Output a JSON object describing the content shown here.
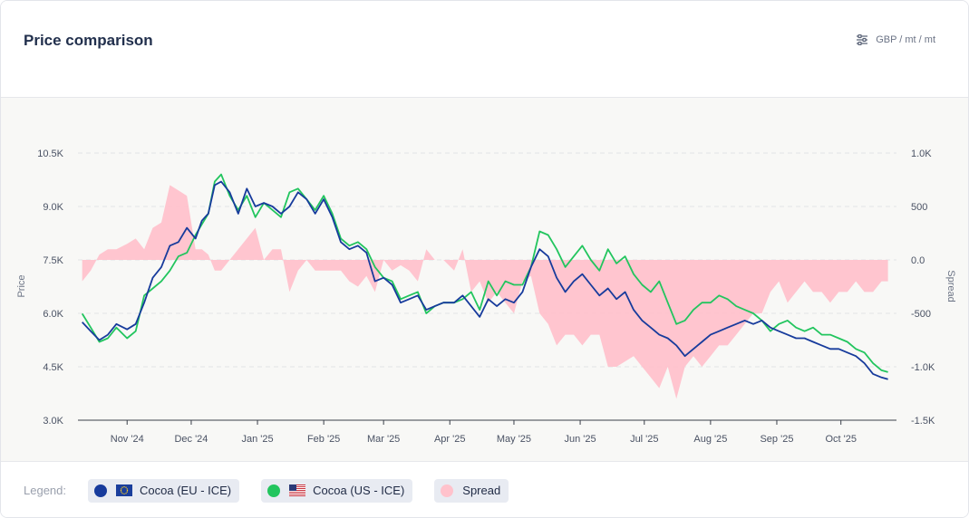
{
  "header": {
    "title": "Price comparison",
    "units": "GBP / mt / mt",
    "units_icon": "sliders-icon"
  },
  "legend": {
    "label": "Legend:",
    "items": [
      {
        "name": "Cocoa (EU - ICE)",
        "color": "#173b9c",
        "flag": "eu-flag-icon"
      },
      {
        "name": "Cocoa (US - ICE)",
        "color": "#22c55e",
        "flag": "us-flag-icon"
      },
      {
        "name": "Spread",
        "color": "#ffc2cc"
      }
    ]
  },
  "chart_data": {
    "type": "line",
    "ylabel": "Price",
    "y2label": "Spread",
    "ylim": [
      3000,
      10500
    ],
    "yticks": [
      3000,
      4500,
      6000,
      7500,
      9000,
      10500
    ],
    "ytick_labels": [
      "3.0K",
      "4.5K",
      "6.0K",
      "7.5K",
      "9.0K",
      "10.5K"
    ],
    "y2lim": [
      -1500,
      1000
    ],
    "y2ticks": [
      -1500,
      -1000,
      -500,
      0,
      500,
      1000
    ],
    "y2tick_labels": [
      "-1.5K",
      "-1.0K",
      "-500",
      "0.0",
      "500",
      "1.0K"
    ],
    "xlim": [
      "2024-10-09",
      "2025-10-27"
    ],
    "xticks": [
      "2024-11-01",
      "2024-12-01",
      "2025-01-01",
      "2025-02-01",
      "2025-03-01",
      "2025-04-01",
      "2025-05-01",
      "2025-06-01",
      "2025-07-01",
      "2025-08-01",
      "2025-09-01",
      "2025-10-01"
    ],
    "xtick_labels": [
      "Nov '24",
      "Dec '24",
      "Jan '25",
      "Feb '25",
      "Mar '25",
      "Apr '25",
      "May '25",
      "Jun '25",
      "Jul '25",
      "Aug '25",
      "Sep '25",
      "Oct '25"
    ],
    "grid": true,
    "legend_position": "bottom",
    "series": [
      {
        "name": "Cocoa (EU - ICE)",
        "axis": "left",
        "color": "#173b9c",
        "x": [
          "2024-10-11",
          "2024-10-15",
          "2024-10-19",
          "2024-10-23",
          "2024-10-27",
          "2024-11-01",
          "2024-11-05",
          "2024-11-09",
          "2024-11-13",
          "2024-11-17",
          "2024-11-21",
          "2024-11-25",
          "2024-11-29",
          "2024-12-03",
          "2024-12-06",
          "2024-12-09",
          "2024-12-12",
          "2024-12-15",
          "2024-12-19",
          "2024-12-23",
          "2024-12-27",
          "2024-12-31",
          "2025-01-04",
          "2025-01-08",
          "2025-01-12",
          "2025-01-16",
          "2025-01-20",
          "2025-01-24",
          "2025-01-28",
          "2025-02-01",
          "2025-02-05",
          "2025-02-09",
          "2025-02-13",
          "2025-02-17",
          "2025-02-21",
          "2025-02-25",
          "2025-03-01",
          "2025-03-05",
          "2025-03-09",
          "2025-03-13",
          "2025-03-17",
          "2025-03-21",
          "2025-03-25",
          "2025-03-29",
          "2025-04-03",
          "2025-04-07",
          "2025-04-11",
          "2025-04-15",
          "2025-04-19",
          "2025-04-23",
          "2025-04-27",
          "2025-05-01",
          "2025-05-05",
          "2025-05-09",
          "2025-05-13",
          "2025-05-17",
          "2025-05-21",
          "2025-05-25",
          "2025-05-29",
          "2025-06-02",
          "2025-06-06",
          "2025-06-10",
          "2025-06-14",
          "2025-06-18",
          "2025-06-22",
          "2025-06-26",
          "2025-06-30",
          "2025-07-04",
          "2025-07-08",
          "2025-07-12",
          "2025-07-16",
          "2025-07-20",
          "2025-07-24",
          "2025-07-28",
          "2025-08-01",
          "2025-08-05",
          "2025-08-09",
          "2025-08-13",
          "2025-08-17",
          "2025-08-21",
          "2025-08-25",
          "2025-08-29",
          "2025-09-02",
          "2025-09-06",
          "2025-09-10",
          "2025-09-14",
          "2025-09-18",
          "2025-09-22",
          "2025-09-26",
          "2025-09-30",
          "2025-10-04",
          "2025-10-08",
          "2025-10-12",
          "2025-10-16",
          "2025-10-20",
          "2025-10-23"
        ],
        "values": [
          5750,
          5500,
          5250,
          5400,
          5700,
          5550,
          5700,
          6300,
          7000,
          7300,
          7900,
          8000,
          8400,
          8100,
          8600,
          8800,
          9600,
          9700,
          9400,
          8800,
          9500,
          9000,
          9100,
          9000,
          8800,
          9000,
          9400,
          9200,
          8800,
          9200,
          8700,
          8000,
          7800,
          7900,
          7700,
          6900,
          7000,
          6800,
          6300,
          6400,
          6500,
          6100,
          6200,
          6300,
          6300,
          6500,
          6200,
          5900,
          6400,
          6200,
          6400,
          6300,
          6600,
          7300,
          7800,
          7600,
          7000,
          6600,
          6900,
          7100,
          6800,
          6500,
          6700,
          6400,
          6600,
          6100,
          5800,
          5600,
          5400,
          5300,
          5100,
          4800,
          5000,
          5200,
          5400,
          5500,
          5600,
          5700,
          5800,
          5700,
          5800,
          5600,
          5500,
          5400,
          5300,
          5300,
          5200,
          5100,
          5000,
          5000,
          4900,
          4800,
          4600,
          4300,
          4200,
          4150
        ]
      },
      {
        "name": "Cocoa (US - ICE)",
        "axis": "left",
        "color": "#22c55e",
        "x": [
          "2024-10-11",
          "2024-10-15",
          "2024-10-19",
          "2024-10-23",
          "2024-10-27",
          "2024-11-01",
          "2024-11-05",
          "2024-11-09",
          "2024-11-13",
          "2024-11-17",
          "2024-11-21",
          "2024-11-25",
          "2024-11-29",
          "2024-12-03",
          "2024-12-06",
          "2024-12-09",
          "2024-12-12",
          "2024-12-15",
          "2024-12-19",
          "2024-12-23",
          "2024-12-27",
          "2024-12-31",
          "2025-01-04",
          "2025-01-08",
          "2025-01-12",
          "2025-01-16",
          "2025-01-20",
          "2025-01-24",
          "2025-01-28",
          "2025-02-01",
          "2025-02-05",
          "2025-02-09",
          "2025-02-13",
          "2025-02-17",
          "2025-02-21",
          "2025-02-25",
          "2025-03-01",
          "2025-03-05",
          "2025-03-09",
          "2025-03-13",
          "2025-03-17",
          "2025-03-21",
          "2025-03-25",
          "2025-03-29",
          "2025-04-03",
          "2025-04-07",
          "2025-04-11",
          "2025-04-15",
          "2025-04-19",
          "2025-04-23",
          "2025-04-27",
          "2025-05-01",
          "2025-05-05",
          "2025-05-09",
          "2025-05-13",
          "2025-05-17",
          "2025-05-21",
          "2025-05-25",
          "2025-05-29",
          "2025-06-02",
          "2025-06-06",
          "2025-06-10",
          "2025-06-14",
          "2025-06-18",
          "2025-06-22",
          "2025-06-26",
          "2025-06-30",
          "2025-07-04",
          "2025-07-08",
          "2025-07-12",
          "2025-07-16",
          "2025-07-20",
          "2025-07-24",
          "2025-07-28",
          "2025-08-01",
          "2025-08-05",
          "2025-08-09",
          "2025-08-13",
          "2025-08-17",
          "2025-08-21",
          "2025-08-25",
          "2025-08-29",
          "2025-09-02",
          "2025-09-06",
          "2025-09-10",
          "2025-09-14",
          "2025-09-18",
          "2025-09-22",
          "2025-09-26",
          "2025-09-30",
          "2025-10-04",
          "2025-10-08",
          "2025-10-12",
          "2025-10-16",
          "2025-10-20",
          "2025-10-23"
        ],
        "values": [
          5990,
          5600,
          5200,
          5300,
          5600,
          5300,
          5500,
          6500,
          6700,
          6900,
          7200,
          7600,
          7700,
          8200,
          8500,
          8800,
          9700,
          9900,
          9300,
          8900,
          9300,
          8700,
          9100,
          8900,
          8700,
          9400,
          9500,
          9200,
          8900,
          9300,
          8800,
          8100,
          7900,
          8000,
          7800,
          7300,
          7000,
          6900,
          6400,
          6500,
          6600,
          6000,
          6200,
          6300,
          6300,
          6400,
          6600,
          6100,
          6900,
          6500,
          6900,
          6800,
          6800,
          7300,
          8300,
          8200,
          7800,
          7300,
          7600,
          7900,
          7500,
          7200,
          7800,
          7400,
          7600,
          7100,
          6800,
          6600,
          6900,
          6300,
          5700,
          5800,
          6100,
          6300,
          6300,
          6500,
          6400,
          6200,
          6100,
          6000,
          5800,
          5500,
          5700,
          5800,
          5600,
          5500,
          5600,
          5400,
          5400,
          5300,
          5200,
          5000,
          4900,
          4600,
          4400,
          4350
        ]
      },
      {
        "name": "Spread",
        "axis": "right",
        "type": "area",
        "color": "#ffc2cc",
        "x": [
          "2024-10-11",
          "2024-10-15",
          "2024-10-19",
          "2024-10-23",
          "2024-10-27",
          "2024-11-01",
          "2024-11-05",
          "2024-11-09",
          "2024-11-13",
          "2024-11-17",
          "2024-11-21",
          "2024-11-25",
          "2024-11-29",
          "2024-12-03",
          "2024-12-06",
          "2024-12-09",
          "2024-12-12",
          "2024-12-15",
          "2024-12-19",
          "2024-12-23",
          "2024-12-27",
          "2024-12-31",
          "2025-01-04",
          "2025-01-08",
          "2025-01-12",
          "2025-01-16",
          "2025-01-20",
          "2025-01-24",
          "2025-01-28",
          "2025-02-01",
          "2025-02-05",
          "2025-02-09",
          "2025-02-13",
          "2025-02-17",
          "2025-02-21",
          "2025-02-25",
          "2025-03-01",
          "2025-03-05",
          "2025-03-09",
          "2025-03-13",
          "2025-03-17",
          "2025-03-21",
          "2025-03-25",
          "2025-03-29",
          "2025-04-03",
          "2025-04-07",
          "2025-04-11",
          "2025-04-15",
          "2025-04-19",
          "2025-04-23",
          "2025-04-27",
          "2025-05-01",
          "2025-05-05",
          "2025-05-09",
          "2025-05-13",
          "2025-05-17",
          "2025-05-21",
          "2025-05-25",
          "2025-05-29",
          "2025-06-02",
          "2025-06-06",
          "2025-06-10",
          "2025-06-14",
          "2025-06-18",
          "2025-06-22",
          "2025-06-26",
          "2025-06-30",
          "2025-07-04",
          "2025-07-08",
          "2025-07-12",
          "2025-07-16",
          "2025-07-20",
          "2025-07-24",
          "2025-07-28",
          "2025-08-01",
          "2025-08-05",
          "2025-08-09",
          "2025-08-13",
          "2025-08-17",
          "2025-08-21",
          "2025-08-25",
          "2025-08-29",
          "2025-09-02",
          "2025-09-06",
          "2025-09-10",
          "2025-09-14",
          "2025-09-18",
          "2025-09-22",
          "2025-09-26",
          "2025-09-30",
          "2025-10-04",
          "2025-10-08",
          "2025-10-12",
          "2025-10-16",
          "2025-10-20",
          "2025-10-23"
        ],
        "values": [
          -200,
          -100,
          50,
          100,
          100,
          150,
          200,
          100,
          300,
          350,
          700,
          650,
          600,
          100,
          100,
          50,
          -100,
          -100,
          0,
          100,
          200,
          300,
          0,
          100,
          100,
          -300,
          -100,
          0,
          -100,
          -100,
          -100,
          -100,
          -200,
          -250,
          -150,
          -300,
          0,
          -100,
          -50,
          -100,
          -200,
          100,
          0,
          0,
          -100,
          100,
          -300,
          -200,
          -400,
          -300,
          -400,
          -500,
          -200,
          -150,
          -500,
          -600,
          -800,
          -700,
          -700,
          -800,
          -700,
          -700,
          -1000,
          -1000,
          -950,
          -900,
          -1000,
          -1100,
          -1200,
          -1000,
          -1300,
          -1000,
          -900,
          -1000,
          -900,
          -800,
          -800,
          -700,
          -600,
          -500,
          -500,
          -300,
          -200,
          -400,
          -300,
          -200,
          -300,
          -300,
          -400,
          -300,
          -300,
          -200,
          -300,
          -300,
          -200,
          -200
        ]
      }
    ]
  }
}
